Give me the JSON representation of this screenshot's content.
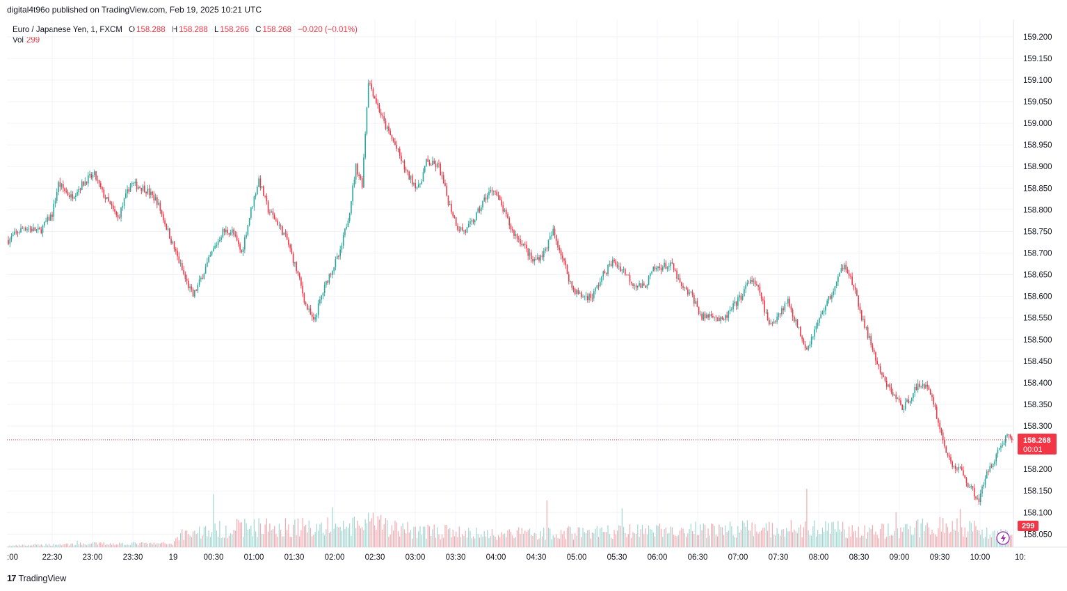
{
  "published": {
    "text": "digital4t96o published on TradingView.com, Feb 19, 2025 10:21 UTC"
  },
  "legend": {
    "symbol": "Euro / Japanese Yen, 1, FXCM",
    "o_label": "O",
    "o_value": "158.288",
    "h_label": "H",
    "h_value": "158.288",
    "l_label": "L",
    "l_value": "158.266",
    "c_label": "C",
    "c_value": "158.268",
    "change": "−0.020 (−0.01%)",
    "vol_label": "Vol",
    "vol_value": "299"
  },
  "price_tag": {
    "price": "158.268",
    "countdown": "00:01"
  },
  "volume_tag": {
    "value": "299"
  },
  "footer": {
    "brand": "TradingView"
  },
  "colors": {
    "up": "#26a69a",
    "down": "#f23645",
    "up_vol": "#9fd6d0",
    "down_vol": "#f6a8ae",
    "grid": "#f0f3fa"
  },
  "chart_data": {
    "type": "candlestick",
    "interval": "1 minute",
    "ylim": [
      158.02,
      159.24
    ],
    "y_ticks": [
      "159.200",
      "159.150",
      "159.100",
      "159.050",
      "159.000",
      "158.950",
      "158.900",
      "158.850",
      "158.800",
      "158.750",
      "158.700",
      "158.650",
      "158.600",
      "158.550",
      "158.500",
      "158.450",
      "158.400",
      "158.350",
      "158.300",
      "158.200",
      "158.150",
      "158.100",
      "158.050"
    ],
    "x_ticks": [
      ":00",
      "22:30",
      "23:00",
      "23:30",
      "19",
      "00:30",
      "01:00",
      "01:30",
      "02:00",
      "02:30",
      "03:00",
      "03:30",
      "04:00",
      "04:30",
      "05:00",
      "05:30",
      "06:00",
      "06:30",
      "07:00",
      "07:30",
      "08:00",
      "08:30",
      "09:00",
      "09:30",
      "10:00",
      "10:"
    ],
    "last_price": 158.268,
    "close_path": [
      [
        0,
        158.73
      ],
      [
        10,
        158.76
      ],
      [
        20,
        158.75
      ],
      [
        28,
        158.79
      ],
      [
        32,
        158.86
      ],
      [
        40,
        158.83
      ],
      [
        50,
        158.87
      ],
      [
        55,
        158.88
      ],
      [
        60,
        158.84
      ],
      [
        70,
        158.78
      ],
      [
        78,
        158.86
      ],
      [
        87,
        158.85
      ],
      [
        95,
        158.82
      ],
      [
        105,
        158.72
      ],
      [
        113,
        158.64
      ],
      [
        118,
        158.6
      ],
      [
        123,
        158.64
      ],
      [
        130,
        158.7
      ],
      [
        137,
        158.75
      ],
      [
        143,
        158.75
      ],
      [
        149,
        158.7
      ],
      [
        155,
        158.8
      ],
      [
        160,
        158.87
      ],
      [
        166,
        158.8
      ],
      [
        172,
        158.77
      ],
      [
        178,
        158.73
      ],
      [
        185,
        158.65
      ],
      [
        190,
        158.58
      ],
      [
        195,
        158.54
      ],
      [
        200,
        158.6
      ],
      [
        205,
        158.65
      ],
      [
        212,
        158.7
      ],
      [
        218,
        158.8
      ],
      [
        222,
        158.9
      ],
      [
        226,
        158.86
      ],
      [
        230,
        159.1
      ],
      [
        235,
        159.05
      ],
      [
        240,
        159.0
      ],
      [
        247,
        158.95
      ],
      [
        255,
        158.88
      ],
      [
        262,
        158.85
      ],
      [
        267,
        158.91
      ],
      [
        275,
        158.9
      ],
      [
        281,
        158.82
      ],
      [
        287,
        158.76
      ],
      [
        292,
        158.75
      ],
      [
        298,
        158.78
      ],
      [
        305,
        158.83
      ],
      [
        310,
        158.85
      ],
      [
        316,
        158.8
      ],
      [
        322,
        158.75
      ],
      [
        329,
        158.72
      ],
      [
        335,
        158.68
      ],
      [
        342,
        158.7
      ],
      [
        348,
        158.75
      ],
      [
        353,
        158.7
      ],
      [
        360,
        158.62
      ],
      [
        366,
        158.6
      ],
      [
        373,
        158.6
      ],
      [
        380,
        158.65
      ],
      [
        386,
        158.68
      ],
      [
        393,
        158.66
      ],
      [
        399,
        158.63
      ],
      [
        406,
        158.62
      ],
      [
        412,
        158.66
      ],
      [
        418,
        158.67
      ],
      [
        424,
        158.67
      ],
      [
        430,
        158.62
      ],
      [
        437,
        158.6
      ],
      [
        443,
        158.55
      ],
      [
        450,
        158.56
      ],
      [
        456,
        158.54
      ],
      [
        462,
        158.57
      ],
      [
        468,
        158.6
      ],
      [
        474,
        158.64
      ],
      [
        480,
        158.61
      ],
      [
        486,
        158.53
      ],
      [
        492,
        158.56
      ],
      [
        498,
        158.59
      ],
      [
        504,
        158.53
      ],
      [
        510,
        158.48
      ],
      [
        516,
        158.53
      ],
      [
        522,
        158.58
      ],
      [
        528,
        158.62
      ],
      [
        534,
        158.68
      ],
      [
        540,
        158.62
      ],
      [
        546,
        158.54
      ],
      [
        552,
        158.48
      ],
      [
        556,
        158.43
      ],
      [
        560,
        158.4
      ],
      [
        566,
        158.37
      ],
      [
        572,
        158.34
      ],
      [
        578,
        158.38
      ],
      [
        584,
        158.4
      ],
      [
        590,
        158.37
      ],
      [
        596,
        158.28
      ],
      [
        602,
        158.21
      ],
      [
        608,
        158.2
      ],
      [
        614,
        158.16
      ],
      [
        620,
        158.13
      ],
      [
        626,
        158.2
      ],
      [
        632,
        158.24
      ],
      [
        638,
        158.28
      ],
      [
        641,
        158.268
      ]
    ],
    "volume_path": [
      [
        0,
        3
      ],
      [
        30,
        6
      ],
      [
        60,
        8
      ],
      [
        105,
        8
      ],
      [
        110,
        30
      ],
      [
        150,
        45
      ],
      [
        220,
        45
      ],
      [
        230,
        55
      ],
      [
        250,
        40
      ],
      [
        300,
        30
      ],
      [
        400,
        35
      ],
      [
        450,
        40
      ],
      [
        520,
        42
      ],
      [
        560,
        35
      ],
      [
        600,
        50
      ],
      [
        641,
        30
      ]
    ],
    "volume_max": 180
  }
}
